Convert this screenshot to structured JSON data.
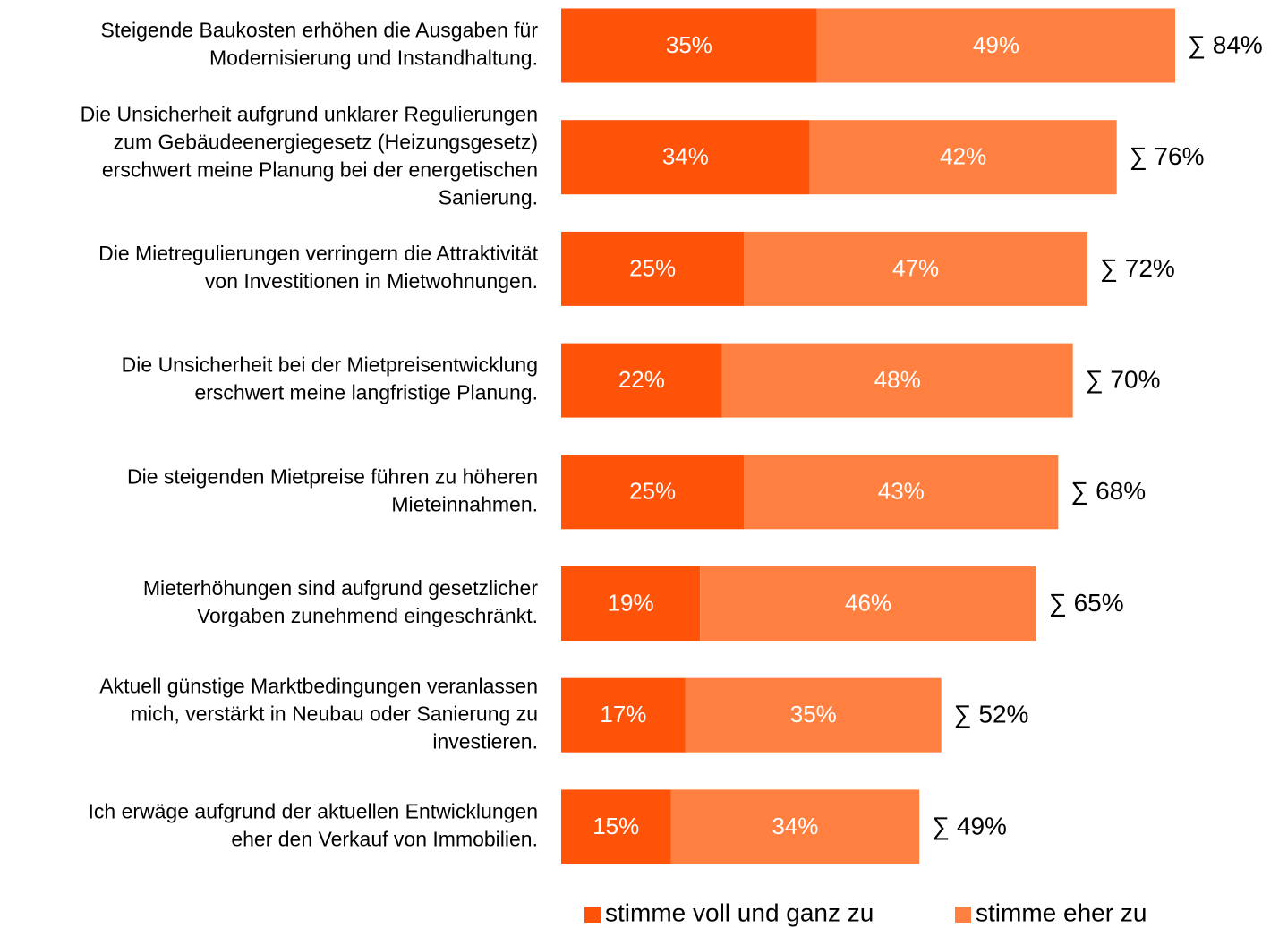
{
  "chart_data": {
    "type": "stacked-bar-horizontal",
    "categories": [
      [
        "Steigende Baukosten erhöhen die Ausgaben für",
        "Modernisierung und Instandhaltung."
      ],
      [
        "Die Unsicherheit aufgrund unklarer Regulierungen",
        "zum Gebäudeenergiegesetz (Heizungsgesetz)",
        "erschwert meine Planung bei der energetischen",
        "Sanierung."
      ],
      [
        "Die Mietregulierungen verringern die Attraktivität",
        "von Investitionen in Mietwohnungen."
      ],
      [
        "Die Unsicherheit bei der Mietpreisentwicklung",
        "erschwert meine langfristige Planung."
      ],
      [
        "Die steigenden Mietpreise führen zu höheren",
        "Mieteinnahmen."
      ],
      [
        "Mieterhöhungen sind aufgrund gesetzlicher",
        "Vorgaben zunehmend eingeschränkt."
      ],
      [
        "Aktuell günstige Marktbedingungen veranlassen",
        "mich, verstärkt in Neubau oder Sanierung zu",
        "investieren."
      ],
      [
        "Ich erwäge aufgrund der aktuellen Entwicklungen",
        "eher den Verkauf von Immobilien."
      ]
    ],
    "series": [
      {
        "name": "stimme voll und ganz zu",
        "color": "#ff5309",
        "values": [
          35,
          34,
          25,
          22,
          25,
          19,
          17,
          15
        ],
        "value_labels": [
          "35%",
          "34%",
          "25%",
          "22%",
          "25%",
          "19%",
          "17%",
          "15%"
        ]
      },
      {
        "name": "stimme eher zu",
        "color": "#ff8040",
        "values": [
          49,
          42,
          47,
          48,
          43,
          46,
          35,
          34
        ],
        "value_labels": [
          "49%",
          "42%",
          "47%",
          "48%",
          "43%",
          "46%",
          "35%",
          "34%"
        ]
      }
    ],
    "total_labels": [
      "∑ 84%",
      "∑ 76%",
      "∑ 72%",
      "∑ 70%",
      "∑ 68%",
      "∑ 65%",
      "∑ 52%",
      "∑ 49%"
    ],
    "xlim": [
      0,
      100
    ]
  }
}
